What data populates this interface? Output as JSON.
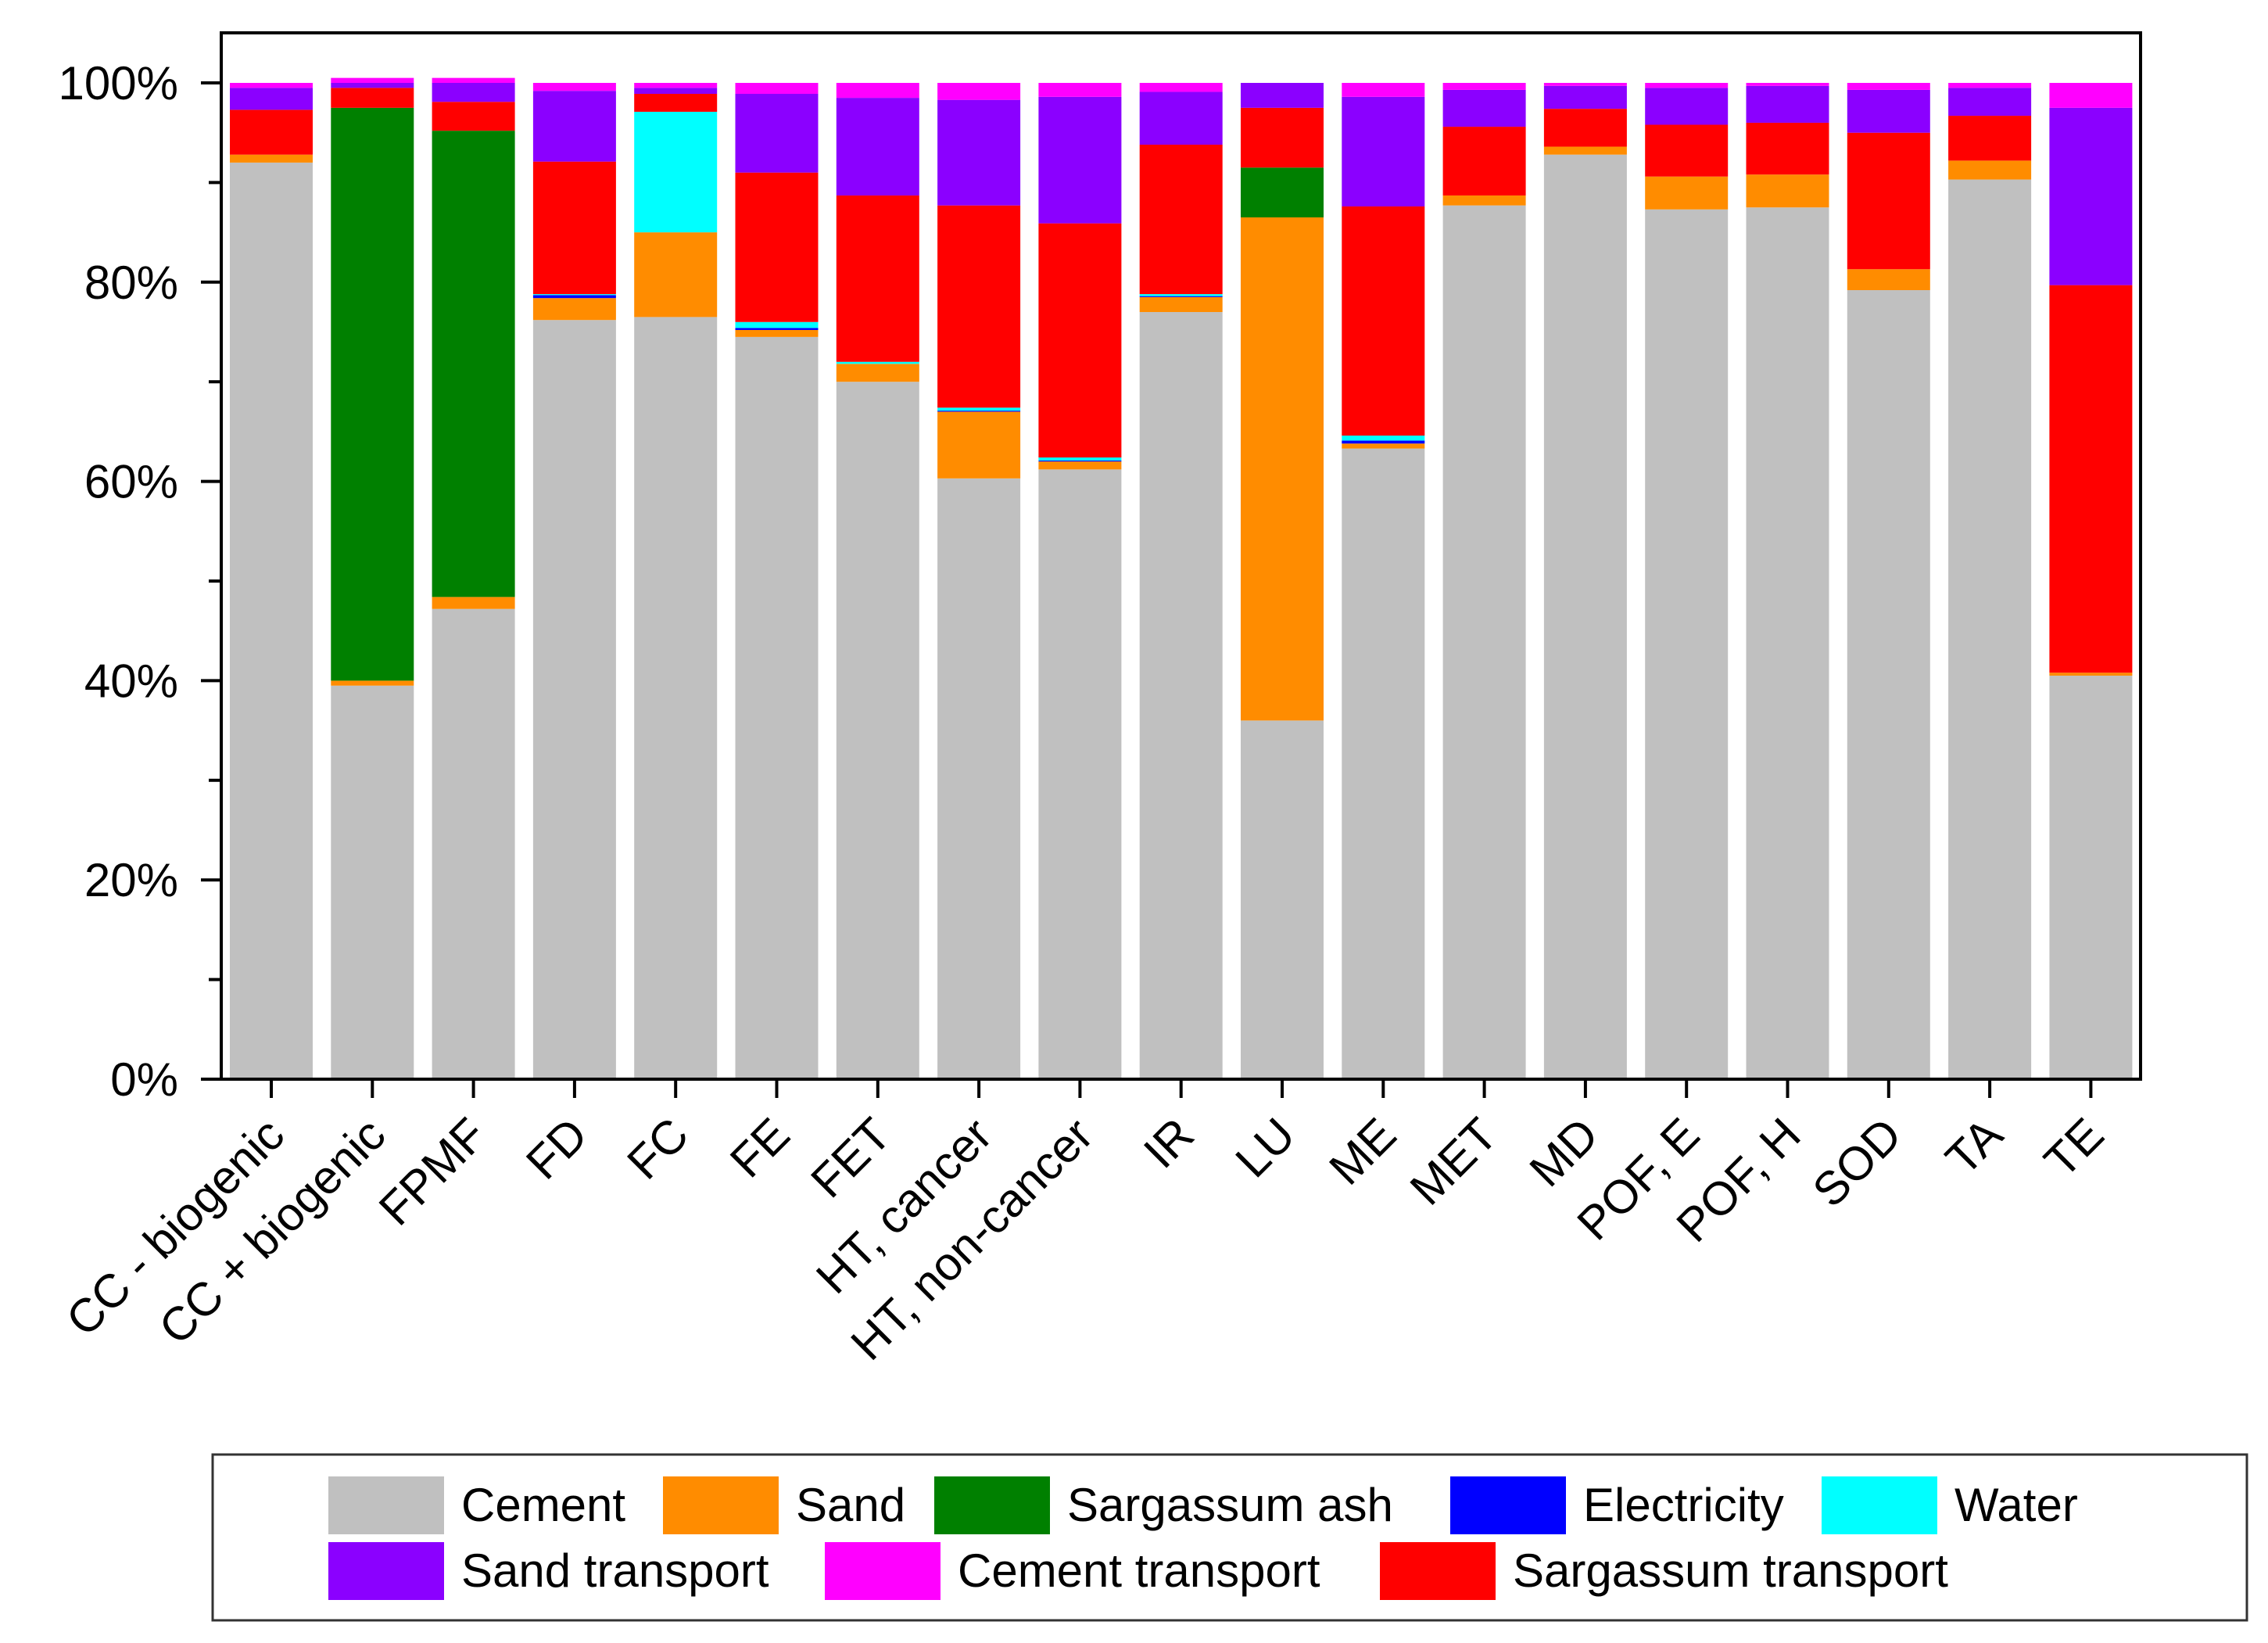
{
  "chart_data": {
    "type": "bar",
    "stacked": true,
    "percent": true,
    "title": "",
    "xlabel": "",
    "ylabel": "",
    "ylim": [
      0,
      100
    ],
    "yticks": [
      "0%",
      "20%",
      "40%",
      "60%",
      "80%",
      "100%"
    ],
    "legend_position": "bottom",
    "categories": [
      "CC - biogenic",
      "CC + biogenic",
      "FPMF",
      "FD",
      "FC",
      "FE",
      "FET",
      "HT, cancer",
      "HT, non-cancer",
      "IR",
      "LU",
      "ME",
      "MET",
      "MD",
      "POF, E",
      "POF, H",
      "SOD",
      "TA",
      "TE"
    ],
    "series": [
      {
        "name": "Cement",
        "color": "#c0c0c0",
        "values": [
          92,
          39.5,
          47.2,
          76.2,
          76.5,
          74.5,
          70,
          60.3,
          61.2,
          77,
          36,
          63.3,
          87.7,
          92.8,
          87.3,
          87.5,
          79.2,
          90.3,
          40.5
        ]
      },
      {
        "name": "Sand",
        "color": "#ff8c00",
        "values": [
          0.8,
          0.5,
          1.2,
          2.2,
          8.5,
          0.7,
          1.8,
          6.7,
          0.8,
          1.5,
          50.5,
          0.5,
          1.0,
          0.8,
          3.3,
          3.3,
          2.1,
          1.9,
          0.3
        ]
      },
      {
        "name": "Sargassum ash",
        "color": "#008000",
        "values": [
          0,
          57.5,
          46.8,
          0,
          0,
          0,
          0,
          0,
          0,
          0,
          5.0,
          0,
          0,
          0,
          0,
          0,
          0,
          0,
          0
        ]
      },
      {
        "name": "Electricity",
        "color": "#0000ff",
        "values": [
          0,
          0,
          0,
          0.3,
          0,
          0.2,
          0,
          0.1,
          0.1,
          0.1,
          0,
          0.3,
          0,
          0,
          0,
          0,
          0,
          0,
          0
        ]
      },
      {
        "name": "Water",
        "color": "#00ffff",
        "values": [
          0,
          0,
          0,
          0.1,
          12.1,
          0.6,
          0.2,
          0.3,
          0.3,
          0.2,
          0,
          0.5,
          0,
          0,
          0,
          0,
          0,
          0,
          0
        ]
      },
      {
        "name": "Sargassum transport",
        "color": "#ff0000",
        "values": [
          4.5,
          2.0,
          2.9,
          13.3,
          1.8,
          15.0,
          16.7,
          20.3,
          23.5,
          15.0,
          6.0,
          23.0,
          6.9,
          3.8,
          5.2,
          5.2,
          13.7,
          4.5,
          38.9
        ]
      },
      {
        "name": "Sand transport",
        "color": "#8b00ff",
        "values": [
          2.2,
          0.5,
          1.9,
          7.1,
          0.6,
          7.9,
          9.8,
          10.6,
          12.7,
          5.3,
          2.5,
          11.0,
          3.7,
          2.3,
          3.7,
          3.7,
          4.3,
          2.8,
          17.8
        ]
      },
      {
        "name": "Cement transport",
        "color": "#ff00ff",
        "values": [
          0.5,
          0.5,
          0.5,
          0.8,
          0.5,
          1.1,
          1.5,
          1.7,
          1.4,
          0.9,
          0,
          1.4,
          0.7,
          0.3,
          0.5,
          0.3,
          0.7,
          0.5,
          2.5
        ]
      }
    ],
    "legend": {
      "rows": [
        [
          "Cement",
          "Sand",
          "Sargassum ash",
          "Electricity",
          "Water"
        ],
        [
          "Sand transport",
          "Cement transport",
          "Sargassum transport"
        ]
      ]
    }
  }
}
